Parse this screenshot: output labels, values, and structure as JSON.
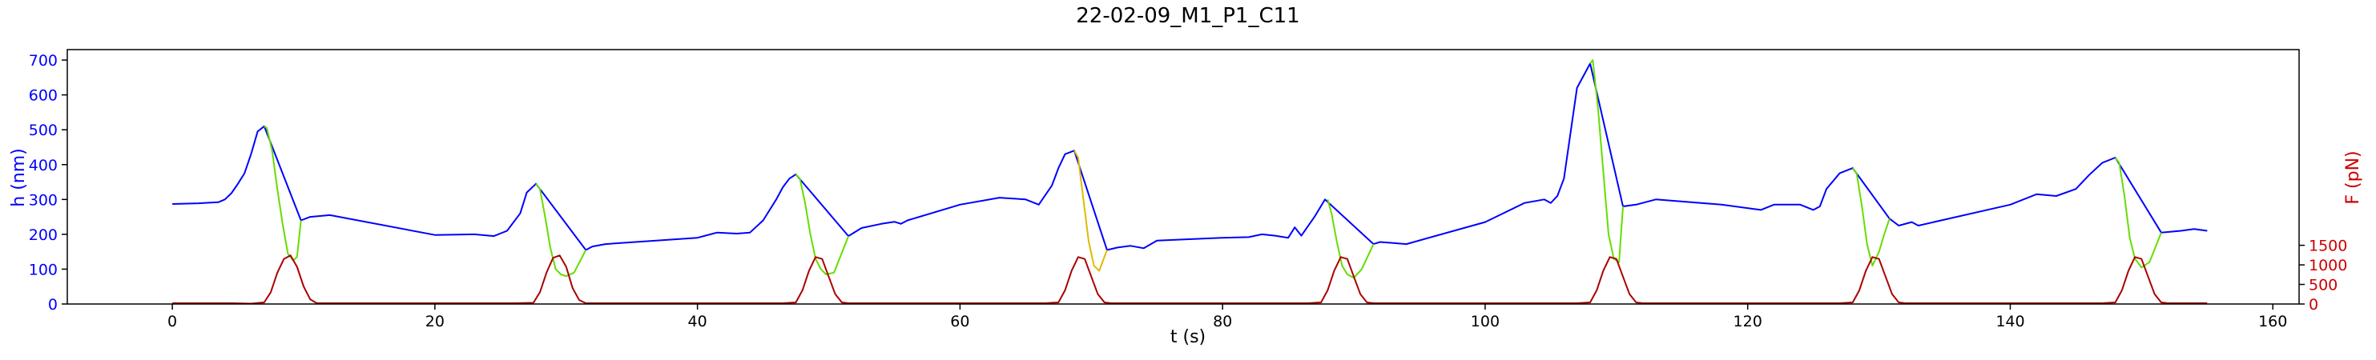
{
  "chart_data": {
    "type": "line",
    "title": "22-02-09_M1_P1_C11",
    "xlabel": "t (s)",
    "ylabel": "h (nm)",
    "y2label": "F (pN)",
    "xlim": [
      -8,
      162
    ],
    "ylim": [
      0,
      730
    ],
    "y2lim": [
      0,
      6500
    ],
    "xticks": [
      0,
      20,
      40,
      60,
      80,
      100,
      120,
      140,
      160
    ],
    "yticks": [
      0,
      100,
      200,
      300,
      400,
      500,
      600,
      700
    ],
    "y2ticks": [
      0,
      500,
      1000,
      1500
    ],
    "colors": {
      "height": "#0000ff",
      "approach": "#66dd00",
      "retract": "#ddbb00",
      "force": "#aa0000",
      "axis_left": "#0000ff",
      "axis_right": "#cc0000"
    },
    "series": [
      {
        "name": "h (nm)",
        "axis": "left",
        "points": [
          [
            0,
            287
          ],
          [
            2,
            289
          ],
          [
            3.5,
            292
          ],
          [
            4,
            300
          ],
          [
            4.5,
            318
          ],
          [
            5,
            345
          ],
          [
            5.5,
            375
          ],
          [
            6,
            430
          ],
          [
            6.5,
            495
          ],
          [
            7,
            510
          ],
          [
            9.8,
            240
          ],
          [
            10.5,
            250
          ],
          [
            12,
            255
          ],
          [
            20,
            198
          ],
          [
            23,
            200
          ],
          [
            24.5,
            195
          ],
          [
            25.5,
            210
          ],
          [
            26.5,
            260
          ],
          [
            27,
            320
          ],
          [
            27.7,
            345
          ],
          [
            31.5,
            155
          ],
          [
            32,
            165
          ],
          [
            33,
            172
          ],
          [
            40,
            190
          ],
          [
            41.5,
            205
          ],
          [
            43,
            202
          ],
          [
            44,
            205
          ],
          [
            45,
            240
          ],
          [
            46,
            300
          ],
          [
            46.5,
            335
          ],
          [
            47,
            360
          ],
          [
            47.5,
            372
          ],
          [
            51.5,
            195
          ],
          [
            52.5,
            218
          ],
          [
            54,
            230
          ],
          [
            55,
            236
          ],
          [
            55.5,
            230
          ],
          [
            56,
            240
          ],
          [
            60,
            285
          ],
          [
            63,
            305
          ],
          [
            65,
            300
          ],
          [
            66,
            285
          ],
          [
            67,
            340
          ],
          [
            67.5,
            390
          ],
          [
            68,
            430
          ],
          [
            68.7,
            440
          ],
          [
            71.2,
            155
          ],
          [
            72,
            162
          ],
          [
            73,
            167
          ],
          [
            74,
            160
          ],
          [
            75,
            182
          ],
          [
            80,
            190
          ],
          [
            82,
            192
          ],
          [
            83,
            200
          ],
          [
            84,
            196
          ],
          [
            85,
            190
          ],
          [
            85.5,
            220
          ],
          [
            86,
            196
          ],
          [
            87,
            250
          ],
          [
            87.8,
            300
          ],
          [
            91.5,
            172
          ],
          [
            92,
            178
          ],
          [
            93,
            175
          ],
          [
            94,
            172
          ],
          [
            100,
            235
          ],
          [
            103,
            290
          ],
          [
            104.5,
            300
          ],
          [
            105,
            290
          ],
          [
            105.5,
            310
          ],
          [
            106,
            360
          ],
          [
            107,
            620
          ],
          [
            108,
            690
          ],
          [
            110.5,
            280
          ],
          [
            111.5,
            285
          ],
          [
            113,
            300
          ],
          [
            118,
            285
          ],
          [
            121,
            270
          ],
          [
            122,
            285
          ],
          [
            124,
            285
          ],
          [
            125,
            270
          ],
          [
            125.5,
            280
          ],
          [
            126,
            330
          ],
          [
            127,
            375
          ],
          [
            128,
            390
          ],
          [
            130.8,
            245
          ],
          [
            131.5,
            225
          ],
          [
            132.5,
            235
          ],
          [
            133,
            225
          ],
          [
            140,
            285
          ],
          [
            142,
            315
          ],
          [
            143.5,
            310
          ],
          [
            145,
            330
          ],
          [
            146,
            370
          ],
          [
            147,
            405
          ],
          [
            148,
            420
          ],
          [
            151.5,
            205
          ],
          [
            153,
            210
          ],
          [
            154,
            215
          ],
          [
            155,
            210
          ]
        ]
      },
      {
        "name": "approach",
        "axis": "left",
        "segments": [
          [
            [
              7,
              510
            ],
            [
              7.2,
              505
            ],
            [
              7.6,
              440
            ],
            [
              8,
              330
            ],
            [
              8.4,
              230
            ],
            [
              8.8,
              145
            ],
            [
              9.2,
              125
            ],
            [
              9.5,
              135
            ],
            [
              9.8,
              240
            ]
          ],
          [
            [
              27.7,
              345
            ],
            [
              28,
              330
            ],
            [
              28.4,
              250
            ],
            [
              28.8,
              160
            ],
            [
              29.2,
              100
            ],
            [
              29.6,
              85
            ],
            [
              30,
              80
            ],
            [
              30.6,
              90
            ],
            [
              31.5,
              155
            ]
          ],
          [
            [
              47.5,
              372
            ],
            [
              47.8,
              360
            ],
            [
              48.2,
              290
            ],
            [
              48.6,
              200
            ],
            [
              49,
              130
            ],
            [
              49.4,
              100
            ],
            [
              49.8,
              85
            ],
            [
              50.4,
              90
            ],
            [
              51.5,
              195
            ]
          ],
          [
            [
              88,
              300
            ],
            [
              88.3,
              260
            ],
            [
              88.7,
              180
            ],
            [
              89.1,
              110
            ],
            [
              89.5,
              85
            ],
            [
              90,
              75
            ],
            [
              90.6,
              100
            ],
            [
              91.5,
              172
            ]
          ],
          [
            [
              108,
              690
            ],
            [
              108.2,
              700
            ],
            [
              108.6,
              560
            ],
            [
              109,
              380
            ],
            [
              109.4,
              200
            ],
            [
              109.8,
              130
            ],
            [
              110.2,
              120
            ],
            [
              110.5,
              280
            ]
          ],
          [
            [
              128,
              390
            ],
            [
              128.3,
              375
            ],
            [
              128.7,
              280
            ],
            [
              129.1,
              170
            ],
            [
              129.5,
              110
            ],
            [
              130,
              150
            ],
            [
              130.4,
              200
            ],
            [
              130.8,
              245
            ]
          ],
          [
            [
              148,
              420
            ],
            [
              148.3,
              405
            ],
            [
              148.7,
              310
            ],
            [
              149.1,
              190
            ],
            [
              149.5,
              130
            ],
            [
              150,
              105
            ],
            [
              150.6,
              120
            ],
            [
              151.5,
              205
            ]
          ]
        ]
      },
      {
        "name": "retract",
        "axis": "left",
        "segments": [
          [
            [
              68.7,
              440
            ],
            [
              69,
              420
            ],
            [
              69.4,
              300
            ],
            [
              69.8,
              180
            ],
            [
              70.2,
              110
            ],
            [
              70.6,
              95
            ],
            [
              71.2,
              155
            ]
          ]
        ]
      },
      {
        "name": "F (pN)",
        "axis": "right",
        "points": [
          [
            0,
            20
          ],
          [
            4.5,
            20
          ],
          [
            6,
            10
          ],
          [
            7,
            40
          ],
          [
            7.5,
            300
          ],
          [
            8,
            800
          ],
          [
            8.5,
            1150
          ],
          [
            9,
            1240
          ],
          [
            9.5,
            950
          ],
          [
            10,
            450
          ],
          [
            10.5,
            120
          ],
          [
            11,
            20
          ],
          [
            26,
            20
          ],
          [
            27.5,
            30
          ],
          [
            28,
            300
          ],
          [
            28.5,
            800
          ],
          [
            29,
            1180
          ],
          [
            29.5,
            1240
          ],
          [
            30,
            950
          ],
          [
            30.5,
            400
          ],
          [
            31,
            100
          ],
          [
            31.5,
            20
          ],
          [
            46.5,
            20
          ],
          [
            47.5,
            40
          ],
          [
            48,
            350
          ],
          [
            48.5,
            850
          ],
          [
            49,
            1200
          ],
          [
            49.5,
            1150
          ],
          [
            50,
            700
          ],
          [
            50.5,
            250
          ],
          [
            51,
            40
          ],
          [
            51.5,
            20
          ],
          [
            66.5,
            20
          ],
          [
            67.5,
            40
          ],
          [
            68,
            350
          ],
          [
            68.5,
            850
          ],
          [
            69,
            1200
          ],
          [
            69.5,
            1150
          ],
          [
            70,
            700
          ],
          [
            70.5,
            250
          ],
          [
            71,
            40
          ],
          [
            71.5,
            20
          ],
          [
            86.5,
            20
          ],
          [
            87.5,
            40
          ],
          [
            88,
            350
          ],
          [
            88.5,
            850
          ],
          [
            89,
            1200
          ],
          [
            89.5,
            1150
          ],
          [
            90,
            700
          ],
          [
            90.5,
            250
          ],
          [
            91,
            40
          ],
          [
            91.5,
            20
          ],
          [
            107,
            20
          ],
          [
            108,
            40
          ],
          [
            108.5,
            350
          ],
          [
            109,
            850
          ],
          [
            109.5,
            1200
          ],
          [
            110,
            1150
          ],
          [
            110.5,
            700
          ],
          [
            111,
            250
          ],
          [
            111.5,
            40
          ],
          [
            112,
            20
          ],
          [
            127,
            20
          ],
          [
            128,
            40
          ],
          [
            128.5,
            350
          ],
          [
            129,
            850
          ],
          [
            129.5,
            1200
          ],
          [
            130,
            1150
          ],
          [
            130.5,
            700
          ],
          [
            131,
            250
          ],
          [
            131.5,
            40
          ],
          [
            132,
            20
          ],
          [
            147,
            20
          ],
          [
            148,
            40
          ],
          [
            148.5,
            350
          ],
          [
            149,
            850
          ],
          [
            149.5,
            1200
          ],
          [
            150,
            1150
          ],
          [
            150.5,
            700
          ],
          [
            151,
            250
          ],
          [
            151.5,
            40
          ],
          [
            152,
            20
          ],
          [
            155,
            20
          ]
        ]
      }
    ]
  }
}
